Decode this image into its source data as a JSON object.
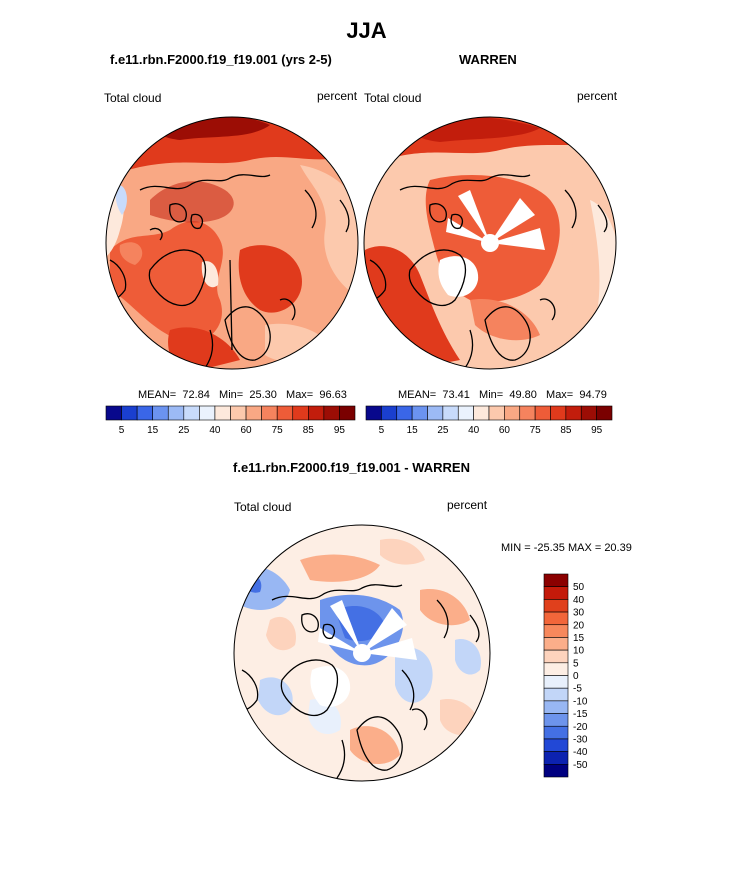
{
  "figure": {
    "season": "JJA"
  },
  "panels": {
    "model": {
      "title": "f.e11.rbn.F2000.f19_f19.001 (yrs 2-5)",
      "variable": "Total cloud",
      "units": "percent",
      "stats": {
        "mean_label": "MEAN=",
        "mean": "72.84",
        "min_label": "Min=",
        "min": "25.30",
        "max_label": "Max=",
        "max": "96.63"
      }
    },
    "obs": {
      "title": "WARREN",
      "variable": "Total cloud",
      "units": "percent",
      "stats": {
        "mean_label": "MEAN=",
        "mean": "73.41",
        "min_label": "Min=",
        "min": "49.80",
        "max_label": "Max=",
        "max": "94.79"
      }
    },
    "diff": {
      "title": "f.e11.rbn.F2000.f19_f19.001 - WARREN",
      "variable": "Total cloud",
      "units": "percent",
      "minmax_text": "MIN = -25.35 MAX =  20.39"
    }
  },
  "chart_data": [
    {
      "type": "heatmap",
      "projection": "north-polar-stereographic",
      "title": "f.e11.rbn.F2000.f19_f19.001 (yrs 2-5)",
      "variable": "Total cloud",
      "units": "percent",
      "mean": 72.84,
      "min": 25.3,
      "max": 96.63,
      "colorbar_levels": [
        5,
        15,
        25,
        40,
        60,
        75,
        85,
        95
      ],
      "colorbar_colors": [
        "#08088c",
        "#1a3fcf",
        "#3a66e8",
        "#6b93f0",
        "#9cbaf5",
        "#c8dbfb",
        "#eaf2fd",
        "#fde9dc",
        "#fcc9ad",
        "#f9a884",
        "#f5835e",
        "#ee5c38",
        "#e03a1c",
        "#c21d0c",
        "#9c0d05",
        "#7a0000"
      ]
    },
    {
      "type": "heatmap",
      "projection": "north-polar-stereographic",
      "title": "WARREN",
      "variable": "Total cloud",
      "units": "percent",
      "mean": 73.41,
      "min": 49.8,
      "max": 94.79,
      "colorbar_levels": [
        5,
        15,
        25,
        40,
        60,
        75,
        85,
        95
      ],
      "colorbar_colors": [
        "#08088c",
        "#1a3fcf",
        "#3a66e8",
        "#6b93f0",
        "#9cbaf5",
        "#c8dbfb",
        "#eaf2fd",
        "#fde9dc",
        "#fcc9ad",
        "#f9a884",
        "#f5835e",
        "#ee5c38",
        "#e03a1c",
        "#c21d0c",
        "#9c0d05",
        "#7a0000"
      ]
    },
    {
      "type": "heatmap",
      "projection": "north-polar-stereographic",
      "title": "f.e11.rbn.F2000.f19_f19.001 - WARREN",
      "variable": "Total cloud",
      "units": "percent",
      "min": -25.35,
      "max": 20.39,
      "colorbar_levels": [
        50,
        40,
        30,
        20,
        15,
        10,
        5,
        0,
        -5,
        -10,
        -15,
        -20,
        -30,
        -40,
        -50
      ],
      "colorbar_colors": [
        "#8b0000",
        "#c41a0a",
        "#e0401c",
        "#f2663a",
        "#f7885c",
        "#fbae8a",
        "#fdd3bd",
        "#fdeee4",
        "#e8f0fc",
        "#c2d6f8",
        "#98b7f3",
        "#6d94ec",
        "#4470e4",
        "#2248d6",
        "#0c22b0",
        "#000080"
      ]
    }
  ]
}
